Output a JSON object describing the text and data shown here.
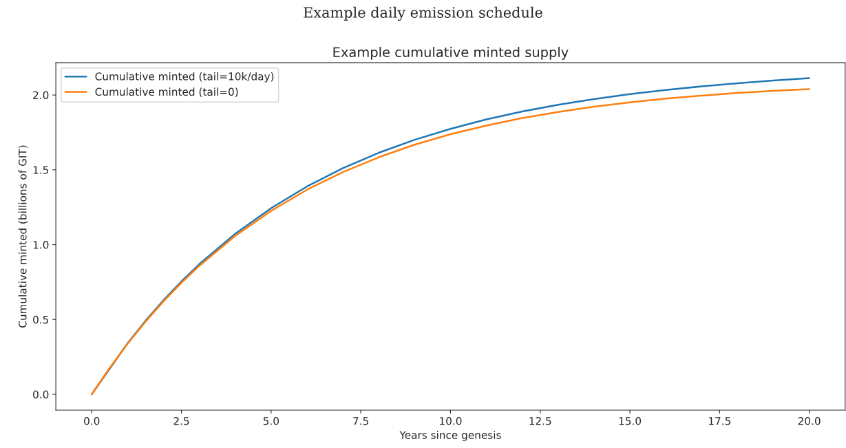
{
  "chart_data": {
    "type": "line",
    "title": "Example cumulative minted supply",
    "subtitle": "Example daily emission schedule",
    "xlabel": "Years since genesis",
    "ylabel": "Cumulative minted (billions of GIT)",
    "x": [
      0,
      0.5,
      1,
      1.5,
      2,
      2.5,
      3,
      4,
      5,
      6,
      7,
      8,
      9,
      10,
      11,
      12,
      13,
      14,
      15,
      16,
      17,
      18,
      19,
      20
    ],
    "series": [
      {
        "name": "Cumulative minted (tail=10k/day)",
        "color": "#1f77b4",
        "x": [
          0,
          1,
          1.5,
          2,
          2.5,
          3,
          4,
          5,
          6,
          7,
          8,
          9,
          10,
          11,
          12,
          13,
          14,
          15,
          16,
          17,
          18,
          19,
          20
        ],
        "values": [
          0,
          0.341,
          0.491,
          0.628,
          0.754,
          0.87,
          1.073,
          1.244,
          1.389,
          1.511,
          1.614,
          1.701,
          1.774,
          1.837,
          1.89,
          1.935,
          1.973,
          2.006,
          2.034,
          2.058,
          2.079,
          2.097,
          2.113
        ]
      },
      {
        "name": "Cumulative minted (tail=0)",
        "color": "#ff7f0e",
        "values": [
          0,
          0.176,
          0.338,
          0.485,
          0.621,
          0.745,
          0.859,
          1.059,
          1.226,
          1.367,
          1.485,
          1.584,
          1.668,
          1.738,
          1.796,
          1.846,
          1.887,
          1.922,
          1.951,
          1.976,
          1.996,
          2.014,
          2.028,
          2.04
        ]
      }
    ],
    "xlim": [
      -1.0,
      21.0
    ],
    "ylim": [
      -0.106,
      2.216
    ],
    "xticks": [
      {
        "value": 0,
        "label": "0.0"
      },
      {
        "value": 2.5,
        "label": "2.5"
      },
      {
        "value": 5,
        "label": "5.0"
      },
      {
        "value": 7.5,
        "label": "7.5"
      },
      {
        "value": 10,
        "label": "10.0"
      },
      {
        "value": 12.5,
        "label": "12.5"
      },
      {
        "value": 15,
        "label": "15.0"
      },
      {
        "value": 17.5,
        "label": "17.5"
      },
      {
        "value": 20,
        "label": "20.0"
      }
    ],
    "yticks": [
      {
        "value": 0,
        "label": "0.0"
      },
      {
        "value": 0.5,
        "label": "0.5"
      },
      {
        "value": 1,
        "label": "1.0"
      },
      {
        "value": 1.5,
        "label": "1.5"
      },
      {
        "value": 2,
        "label": "2.0"
      }
    ],
    "grid": false,
    "legend": "top left",
    "marker": "none",
    "line_style": "solid"
  }
}
